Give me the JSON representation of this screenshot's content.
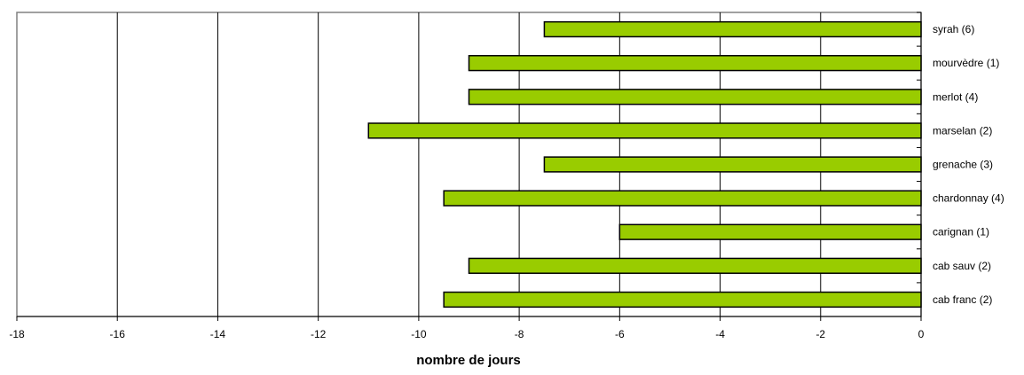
{
  "chart_data": {
    "type": "bar",
    "orientation": "horizontal",
    "title": "",
    "xlabel": "nombre de jours",
    "ylabel": "",
    "categories": [
      "cab franc (2)",
      "cab sauv (2)",
      "carignan (1)",
      "chardonnay (4)",
      "grenache (3)",
      "marselan (2)",
      "merlot (4)",
      "mourvèdre (1)",
      "syrah (6)"
    ],
    "values": [
      -9.5,
      -9,
      -6,
      -9.5,
      -7.5,
      -11,
      -9,
      -9,
      -7.5
    ],
    "xlim": [
      -18,
      0
    ],
    "xticks": [
      "-18",
      "-16",
      "-14",
      "-12",
      "-10",
      "-8",
      "-6",
      "-4",
      "-2",
      "0"
    ],
    "grid": "vertical",
    "legend": "none",
    "bar_color": "#99cc00",
    "bar_edge_color": "#000000",
    "category_labels_side": "right"
  }
}
